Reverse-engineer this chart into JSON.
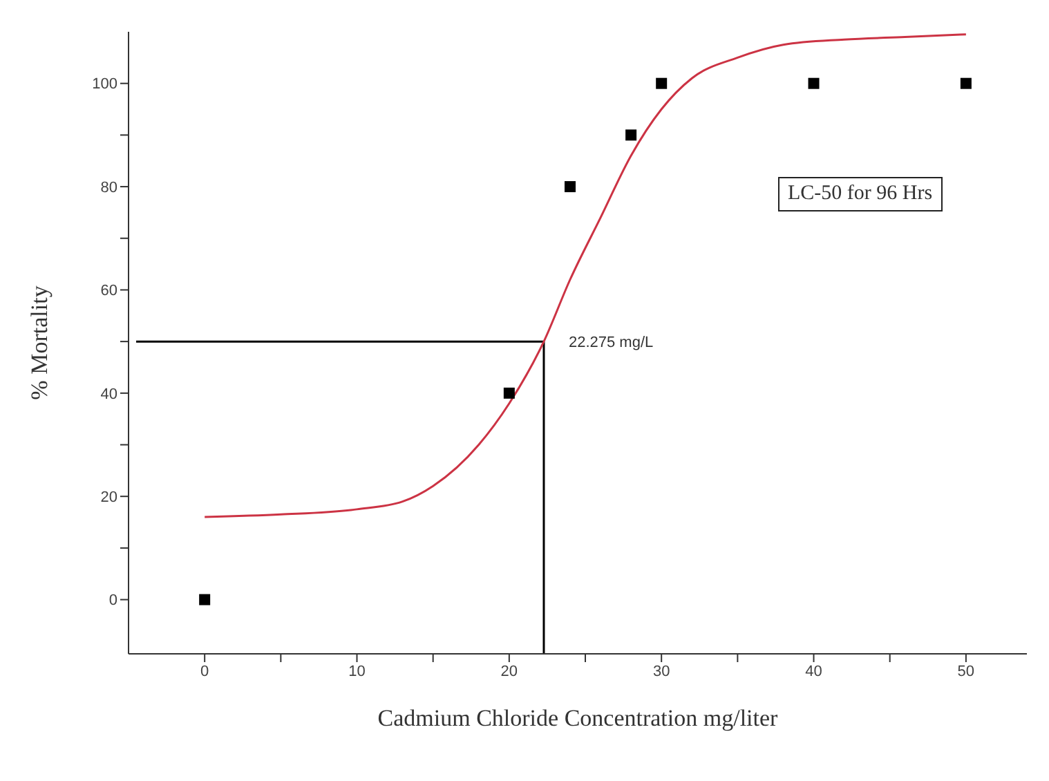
{
  "chart_data": {
    "type": "scatter",
    "xlabel": "Cadmium Chloride Concentration mg/liter",
    "ylabel": "% Mortality",
    "xlim": [
      -5,
      54
    ],
    "ylim": [
      -10.5,
      110
    ],
    "xticks": [
      0,
      {
        "value": 5,
        "label": null
      },
      10,
      {
        "value": 15,
        "label": null
      },
      20,
      {
        "value": 25,
        "label": null
      },
      30,
      {
        "value": 35,
        "label": null
      },
      40,
      {
        "value": 45,
        "label": null
      },
      50
    ],
    "yticks": [
      0,
      {
        "value": 10,
        "label": null
      },
      20,
      {
        "value": 30,
        "label": null
      },
      40,
      {
        "value": 50,
        "label": null
      },
      60,
      {
        "value": 70,
        "label": null
      },
      80,
      {
        "value": 90,
        "label": null
      },
      100
    ],
    "grid": false,
    "legend": false,
    "series": [
      {
        "marker": "square",
        "color": "#000000",
        "x": [
          0,
          20,
          24,
          28,
          30,
          40,
          50
        ],
        "values": [
          0,
          40,
          80,
          90,
          100,
          100,
          100
        ]
      },
      {
        "type": "line",
        "color": "#cc3344",
        "x": [
          0,
          5,
          10,
          13,
          15,
          18,
          20,
          22.275,
          24,
          26,
          28,
          30,
          32,
          35,
          38,
          42,
          46,
          50
        ],
        "values": [
          16,
          16.5,
          17.5,
          19,
          22,
          30,
          38,
          50,
          62,
          74,
          86,
          95,
          101,
          105,
          107.5,
          108.5,
          109,
          109.5
        ]
      }
    ],
    "ref_lines": [
      {
        "axis": "y",
        "value": 50,
        "color": "#000000"
      },
      {
        "axis": "x",
        "value": 22.275,
        "color": "#000000"
      }
    ],
    "annotations": [
      {
        "text": "22.275 mg/L",
        "x": 22.275,
        "y": 50
      },
      "LC-50 for 96 Hrs"
    ]
  }
}
